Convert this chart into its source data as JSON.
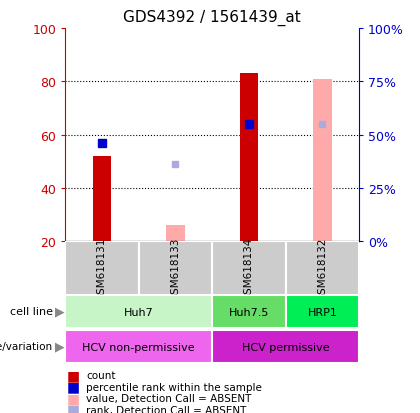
{
  "title": "GDS4392 / 1561439_at",
  "samples": [
    "GSM618131",
    "GSM618133",
    "GSM618134",
    "GSM618132"
  ],
  "count_values": [
    52,
    null,
    83,
    null
  ],
  "percentile_values": [
    57,
    null,
    64,
    null
  ],
  "absent_value_values": [
    null,
    26,
    null,
    81
  ],
  "absent_rank_values": [
    null,
    49,
    null,
    64
  ],
  "cell_line_data": [
    {
      "label": "Huh7",
      "start": 0,
      "end": 2,
      "color": "#c8f5c8"
    },
    {
      "label": "Huh7.5",
      "start": 2,
      "end": 3,
      "color": "#66dd66"
    },
    {
      "label": "HRP1",
      "start": 3,
      "end": 4,
      "color": "#00ee55"
    }
  ],
  "geno_data": [
    {
      "label": "HCV non-permissive",
      "start": 0,
      "end": 2,
      "color": "#ee66ee"
    },
    {
      "label": "HCV permissive",
      "start": 2,
      "end": 4,
      "color": "#cc22cc"
    }
  ],
  "ylim": [
    20,
    100
  ],
  "yticks": [
    20,
    40,
    60,
    80,
    100
  ],
  "y2_ticks": [
    20,
    40,
    60,
    80,
    100
  ],
  "y2_labels": [
    "0%",
    "25%",
    "50%",
    "75%",
    "100%"
  ],
  "bar_width": 0.25,
  "count_color": "#cc0000",
  "percentile_color": "#0000cc",
  "absent_value_color": "#ffaaaa",
  "absent_rank_color": "#aaaadd",
  "grid_color": "#000000",
  "left_axis_color": "#cc0000",
  "right_axis_color": "#0000cc",
  "sample_box_color": "#cccccc",
  "legend_items": [
    {
      "color": "#cc0000",
      "label": "count"
    },
    {
      "color": "#0000cc",
      "label": "percentile rank within the sample"
    },
    {
      "color": "#ffaaaa",
      "label": "value, Detection Call = ABSENT"
    },
    {
      "color": "#aaaadd",
      "label": "rank, Detection Call = ABSENT"
    }
  ]
}
